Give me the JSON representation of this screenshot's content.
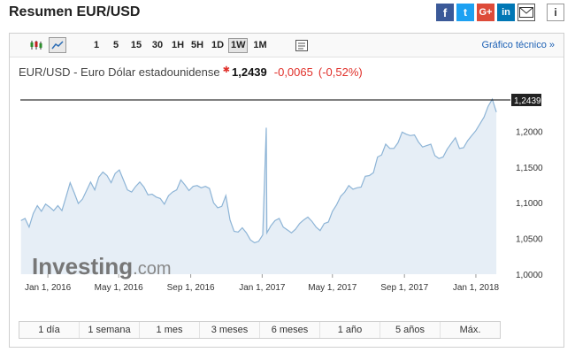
{
  "page_title": "Resumen EUR/USD",
  "share_icons": [
    "facebook-icon",
    "twitter-icon",
    "google-plus-icon",
    "linkedin-icon",
    "mail-icon",
    "info-icon"
  ],
  "toolbar": {
    "timeframes": [
      "1",
      "5",
      "15",
      "30",
      "1H",
      "5H",
      "1D",
      "1W",
      "1M"
    ],
    "active_timeframe": "1W",
    "technical_link": "Gráfico técnico »"
  },
  "quote": {
    "name": "EUR/USD - Euro Dólar estadounidense",
    "price": "1,2439",
    "change": "-0,0065",
    "change_pct": "(-0,52%)"
  },
  "watermark": {
    "brand": "Investing",
    "suffix": ".com"
  },
  "colors": {
    "line": "#8db4d6",
    "fill": "#e6eef6",
    "negative": "#e0302a",
    "link": "#1a5fb4"
  },
  "range_buttons": [
    "1 día",
    "1 semana",
    "1 mes",
    "3 meses",
    "6 meses",
    "1 año",
    "5 años",
    "Máx."
  ],
  "chart_data": {
    "type": "area",
    "title": "EUR/USD",
    "xlabel": "",
    "ylabel": "",
    "ylim": [
      1.0,
      1.26
    ],
    "grid": false,
    "y_ticks": [
      "1,0000",
      "1,0500",
      "1,1000",
      "1,1500",
      "1,2000"
    ],
    "y_tick_values": [
      1.0,
      1.05,
      1.1,
      1.15,
      1.2
    ],
    "x_ticks": [
      "Jan 1, 2016",
      "May 1, 2016",
      "Sep 1, 2016",
      "Jan 1, 2017",
      "May 1, 2017",
      "Sep 1, 2017",
      "Jan 1, 2018"
    ],
    "x_tick_values": [
      "2016-01-01",
      "2016-05-01",
      "2016-09-01",
      "2017-01-01",
      "2017-05-01",
      "2017-09-01",
      "2018-01-01"
    ],
    "x_range": [
      "2015-11-15",
      "2018-03-01"
    ],
    "last_price_label": "1,2439",
    "last_price_value": 1.2439,
    "series": [
      {
        "x": [
          "2015-11-16",
          "2015-11-23",
          "2015-11-30",
          "2015-12-07",
          "2015-12-14",
          "2015-12-21",
          "2015-12-28",
          "2016-01-04",
          "2016-01-11",
          "2016-01-18",
          "2016-01-25",
          "2016-02-01",
          "2016-02-08",
          "2016-02-15",
          "2016-02-22",
          "2016-02-29",
          "2016-03-07",
          "2016-03-14",
          "2016-03-21",
          "2016-03-28",
          "2016-04-04",
          "2016-04-11",
          "2016-04-18",
          "2016-04-25",
          "2016-05-02",
          "2016-05-09",
          "2016-05-16",
          "2016-05-23",
          "2016-05-30",
          "2016-06-06",
          "2016-06-13",
          "2016-06-20",
          "2016-06-27",
          "2016-07-04",
          "2016-07-11",
          "2016-07-18",
          "2016-07-25",
          "2016-08-01",
          "2016-08-08",
          "2016-08-15",
          "2016-08-22",
          "2016-08-29",
          "2016-09-05",
          "2016-09-12",
          "2016-09-19",
          "2016-09-26",
          "2016-10-03",
          "2016-10-10",
          "2016-10-17",
          "2016-10-24",
          "2016-10-31",
          "2016-11-07",
          "2016-11-14",
          "2016-11-21",
          "2016-11-28",
          "2016-12-05",
          "2016-12-12",
          "2016-12-19",
          "2016-12-26",
          "2017-01-02",
          "2017-01-09",
          "2017-01-16",
          "2017-01-23",
          "2017-01-30",
          "2017-02-06",
          "2017-02-13",
          "2017-02-20",
          "2017-02-27",
          "2017-03-06",
          "2017-03-13",
          "2017-03-20",
          "2017-03-27",
          "2017-04-03",
          "2017-04-10",
          "2017-04-17",
          "2017-04-24",
          "2017-05-01",
          "2017-05-08",
          "2017-05-15",
          "2017-05-22",
          "2017-05-29",
          "2017-06-05",
          "2017-06-12",
          "2017-06-19",
          "2017-06-26",
          "2017-07-03",
          "2017-07-10",
          "2017-07-17",
          "2017-07-24",
          "2017-07-31",
          "2017-08-07",
          "2017-08-14",
          "2017-08-21",
          "2017-08-28",
          "2017-09-04",
          "2017-09-11",
          "2017-09-18",
          "2017-09-25",
          "2017-10-02",
          "2017-10-09",
          "2017-10-16",
          "2017-10-23",
          "2017-10-30",
          "2017-11-06",
          "2017-11-13",
          "2017-11-20",
          "2017-11-27",
          "2017-12-04",
          "2017-12-11",
          "2017-12-18",
          "2017-12-25",
          "2018-01-01",
          "2017-01-08",
          "2018-01-15",
          "2018-01-22",
          "2018-01-29",
          "2018-02-05"
        ],
        "y": [
          1.075,
          1.078,
          1.066,
          1.085,
          1.096,
          1.088,
          1.098,
          1.094,
          1.089,
          1.096,
          1.089,
          1.108,
          1.128,
          1.114,
          1.099,
          1.105,
          1.117,
          1.129,
          1.118,
          1.136,
          1.143,
          1.138,
          1.128,
          1.141,
          1.146,
          1.132,
          1.118,
          1.115,
          1.123,
          1.129,
          1.122,
          1.111,
          1.112,
          1.108,
          1.106,
          1.098,
          1.11,
          1.115,
          1.118,
          1.132,
          1.125,
          1.117,
          1.123,
          1.124,
          1.121,
          1.123,
          1.12,
          1.1,
          1.093,
          1.095,
          1.11,
          1.076,
          1.06,
          1.059,
          1.065,
          1.058,
          1.048,
          1.044,
          1.046,
          1.055,
          1.058,
          1.068,
          1.075,
          1.078,
          1.066,
          1.062,
          1.058,
          1.063,
          1.071,
          1.076,
          1.08,
          1.074,
          1.066,
          1.061,
          1.071,
          1.073,
          1.088,
          1.097,
          1.109,
          1.115,
          1.124,
          1.119,
          1.121,
          1.122,
          1.137,
          1.138,
          1.142,
          1.164,
          1.167,
          1.182,
          1.176,
          1.176,
          1.184,
          1.199,
          1.196,
          1.194,
          1.195,
          1.185,
          1.178,
          1.18,
          1.182,
          1.166,
          1.162,
          1.164,
          1.175,
          1.183,
          1.191,
          1.176,
          1.177,
          1.187,
          1.194,
          1.201,
          1.205,
          1.22,
          1.235,
          1.245,
          1.227
        ]
      }
    ]
  }
}
